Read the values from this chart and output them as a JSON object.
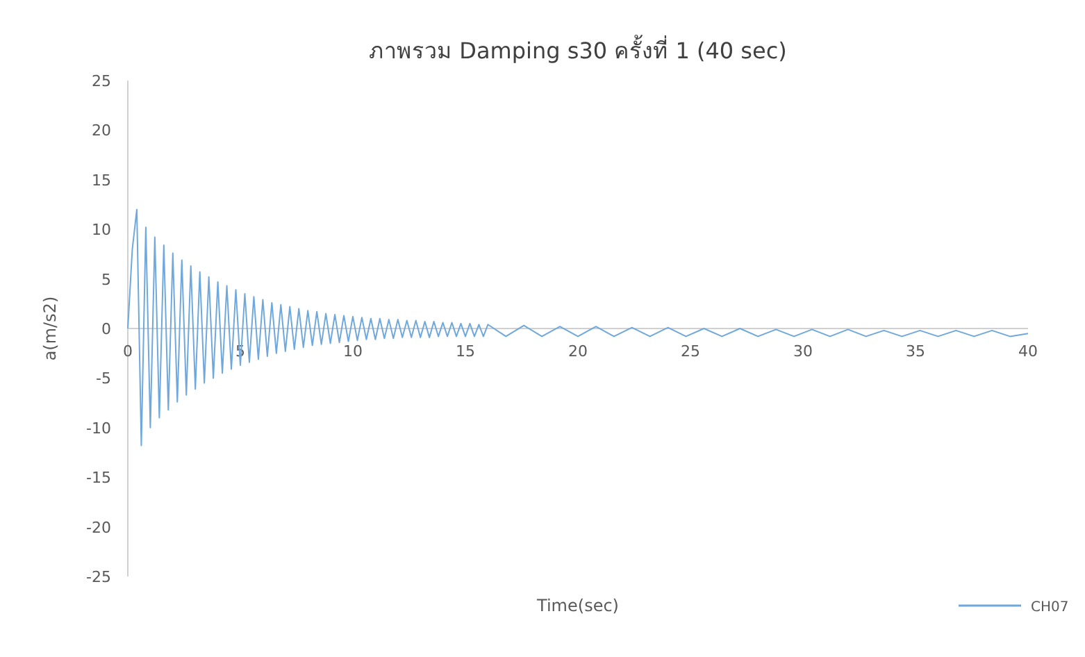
{
  "chart_data": {
    "type": "line",
    "title": "ภาพรวม Damping s30 ครั้งที่ 1 (40 sec)",
    "xlabel": "Time(sec)",
    "ylabel": "a(m/s2)",
    "xlim": [
      0,
      40
    ],
    "ylim": [
      -25,
      25
    ],
    "xticks": [
      0,
      5,
      10,
      15,
      20,
      25,
      30,
      35,
      40
    ],
    "yticks": [
      -25,
      -20,
      -15,
      -10,
      -5,
      0,
      5,
      10,
      15,
      20,
      25
    ],
    "legend": "bottom right",
    "x": [
      0,
      0.2,
      0.4,
      0.6,
      0.8,
      1.0,
      1.2,
      1.4,
      1.6,
      1.8,
      2.0,
      2.2,
      2.4,
      2.6,
      2.8,
      3.0,
      3.2,
      3.4,
      3.6,
      3.8,
      4.0,
      4.2,
      4.4,
      4.6,
      4.8,
      5.0,
      5.2,
      5.4,
      5.6,
      5.8,
      6.0,
      6.2,
      6.4,
      6.6,
      6.8,
      7.0,
      7.2,
      7.4,
      7.6,
      7.8,
      8.0,
      8.2,
      8.4,
      8.6,
      8.8,
      9.0,
      9.2,
      9.4,
      9.6,
      9.8,
      10.0,
      10.2,
      10.4,
      10.6,
      10.8,
      11.0,
      11.2,
      11.4,
      11.6,
      11.8,
      12.0,
      12.2,
      12.4,
      12.6,
      12.8,
      13.0,
      13.2,
      13.4,
      13.6,
      13.8,
      14.0,
      14.2,
      14.4,
      14.6,
      14.8,
      15.0,
      15.2,
      15.4,
      15.6,
      15.8,
      16.0,
      16.8,
      17.6,
      18.4,
      19.2,
      20.0,
      20.8,
      21.6,
      22.4,
      23.2,
      24.0,
      24.8,
      25.6,
      26.4,
      27.2,
      28.0,
      28.8,
      29.6,
      30.4,
      31.2,
      32.0,
      32.8,
      33.6,
      34.4,
      35.2,
      36.0,
      36.8,
      37.6,
      38.4,
      39.2,
      40.0
    ],
    "series": [
      {
        "name": "CH07",
        "color": "#6fa8dc",
        "values": [
          0,
          8,
          12.0,
          -11.8,
          10.2,
          -10.0,
          9.2,
          -9.0,
          8.4,
          -8.2,
          7.6,
          -7.4,
          6.9,
          -6.7,
          6.3,
          -6.1,
          5.7,
          -5.5,
          5.2,
          -5.0,
          4.7,
          -4.5,
          4.3,
          -4.1,
          3.9,
          -3.7,
          3.5,
          -3.4,
          3.2,
          -3.1,
          2.9,
          -2.8,
          2.6,
          -2.5,
          2.4,
          -2.3,
          2.2,
          -2.1,
          2.0,
          -1.9,
          1.8,
          -1.7,
          1.7,
          -1.6,
          1.5,
          -1.5,
          1.4,
          -1.4,
          1.3,
          -1.3,
          1.2,
          -1.2,
          1.1,
          -1.1,
          1.0,
          -1.1,
          1.0,
          -1.0,
          0.9,
          -1.0,
          0.9,
          -0.9,
          0.8,
          -0.9,
          0.8,
          -0.9,
          0.7,
          -0.9,
          0.7,
          -0.8,
          0.6,
          -0.8,
          0.6,
          -0.8,
          0.5,
          -0.8,
          0.5,
          -0.8,
          0.4,
          -0.8,
          0.4,
          -0.8,
          0.3,
          -0.8,
          0.2,
          -0.8,
          0.2,
          -0.8,
          0.1,
          -0.8,
          0.1,
          -0.8,
          0.0,
          -0.8,
          0.0,
          -0.8,
          -0.1,
          -0.8,
          -0.1,
          -0.8,
          -0.1,
          -0.8,
          -0.2,
          -0.8,
          -0.2,
          -0.8,
          -0.2,
          -0.8,
          -0.2,
          -0.8,
          -0.5
        ]
      }
    ]
  }
}
